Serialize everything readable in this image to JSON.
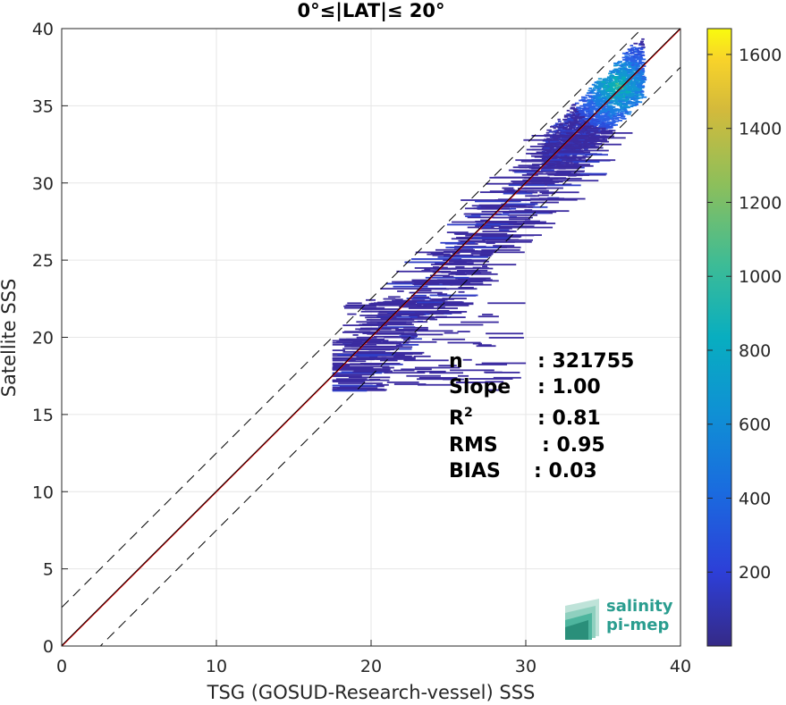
{
  "chart_data": {
    "type": "heatmap",
    "title": "0°≤|LAT|≤ 20°",
    "xlabel": "TSG (GOSUD-Research-vessel) SSS",
    "ylabel": "Satellite SSS",
    "xlim": [
      0,
      40
    ],
    "ylim": [
      0,
      40
    ],
    "xticks": [
      "0",
      "10",
      "20",
      "30",
      "40"
    ],
    "yticks": [
      "0",
      "5",
      "10",
      "15",
      "20",
      "25",
      "30",
      "35",
      "40"
    ],
    "grid": true,
    "colorbar": {
      "range": [
        0,
        1670
      ],
      "ticks": [
        "200",
        "400",
        "600",
        "800",
        "1000",
        "1200",
        "1400",
        "1600"
      ],
      "colormap": "parula"
    },
    "lines": [
      {
        "kind": "identity",
        "slope": 1.0,
        "intercept": 0,
        "color": "#ff0000"
      },
      {
        "kind": "fit",
        "slope": 1.0,
        "intercept": 0.03,
        "color": "#000000"
      },
      {
        "kind": "bound-upper",
        "slope": 1.0,
        "intercept": 2.5,
        "color": "#000000",
        "style": "dashed"
      },
      {
        "kind": "bound-lower",
        "slope": 1.0,
        "intercept": -2.5,
        "color": "#000000",
        "style": "dashed"
      }
    ],
    "density_summary": {
      "peak_center": [
        35.8,
        36.2
      ],
      "main_cluster": {
        "x_range": [
          31,
          37.5
        ],
        "y_range": [
          31,
          39.5
        ]
      },
      "scatter_region": {
        "x_range": [
          17.5,
          37
        ],
        "y_range": [
          16,
          33
        ]
      }
    },
    "stats": [
      {
        "label": "n",
        "sup": "",
        "value": ": 321755"
      },
      {
        "label": "Slope",
        "sup": "",
        "value": ": 1.00"
      },
      {
        "label": "R",
        "sup": "2",
        "value": ": 0.81"
      },
      {
        "label": "RMS",
        "sup": "",
        "value": ": 0.95"
      },
      {
        "label": "BIAS",
        "sup": "",
        "value": ": 0.03"
      }
    ]
  },
  "logo": {
    "line1": "salinity",
    "line2": "pi-mep"
  }
}
